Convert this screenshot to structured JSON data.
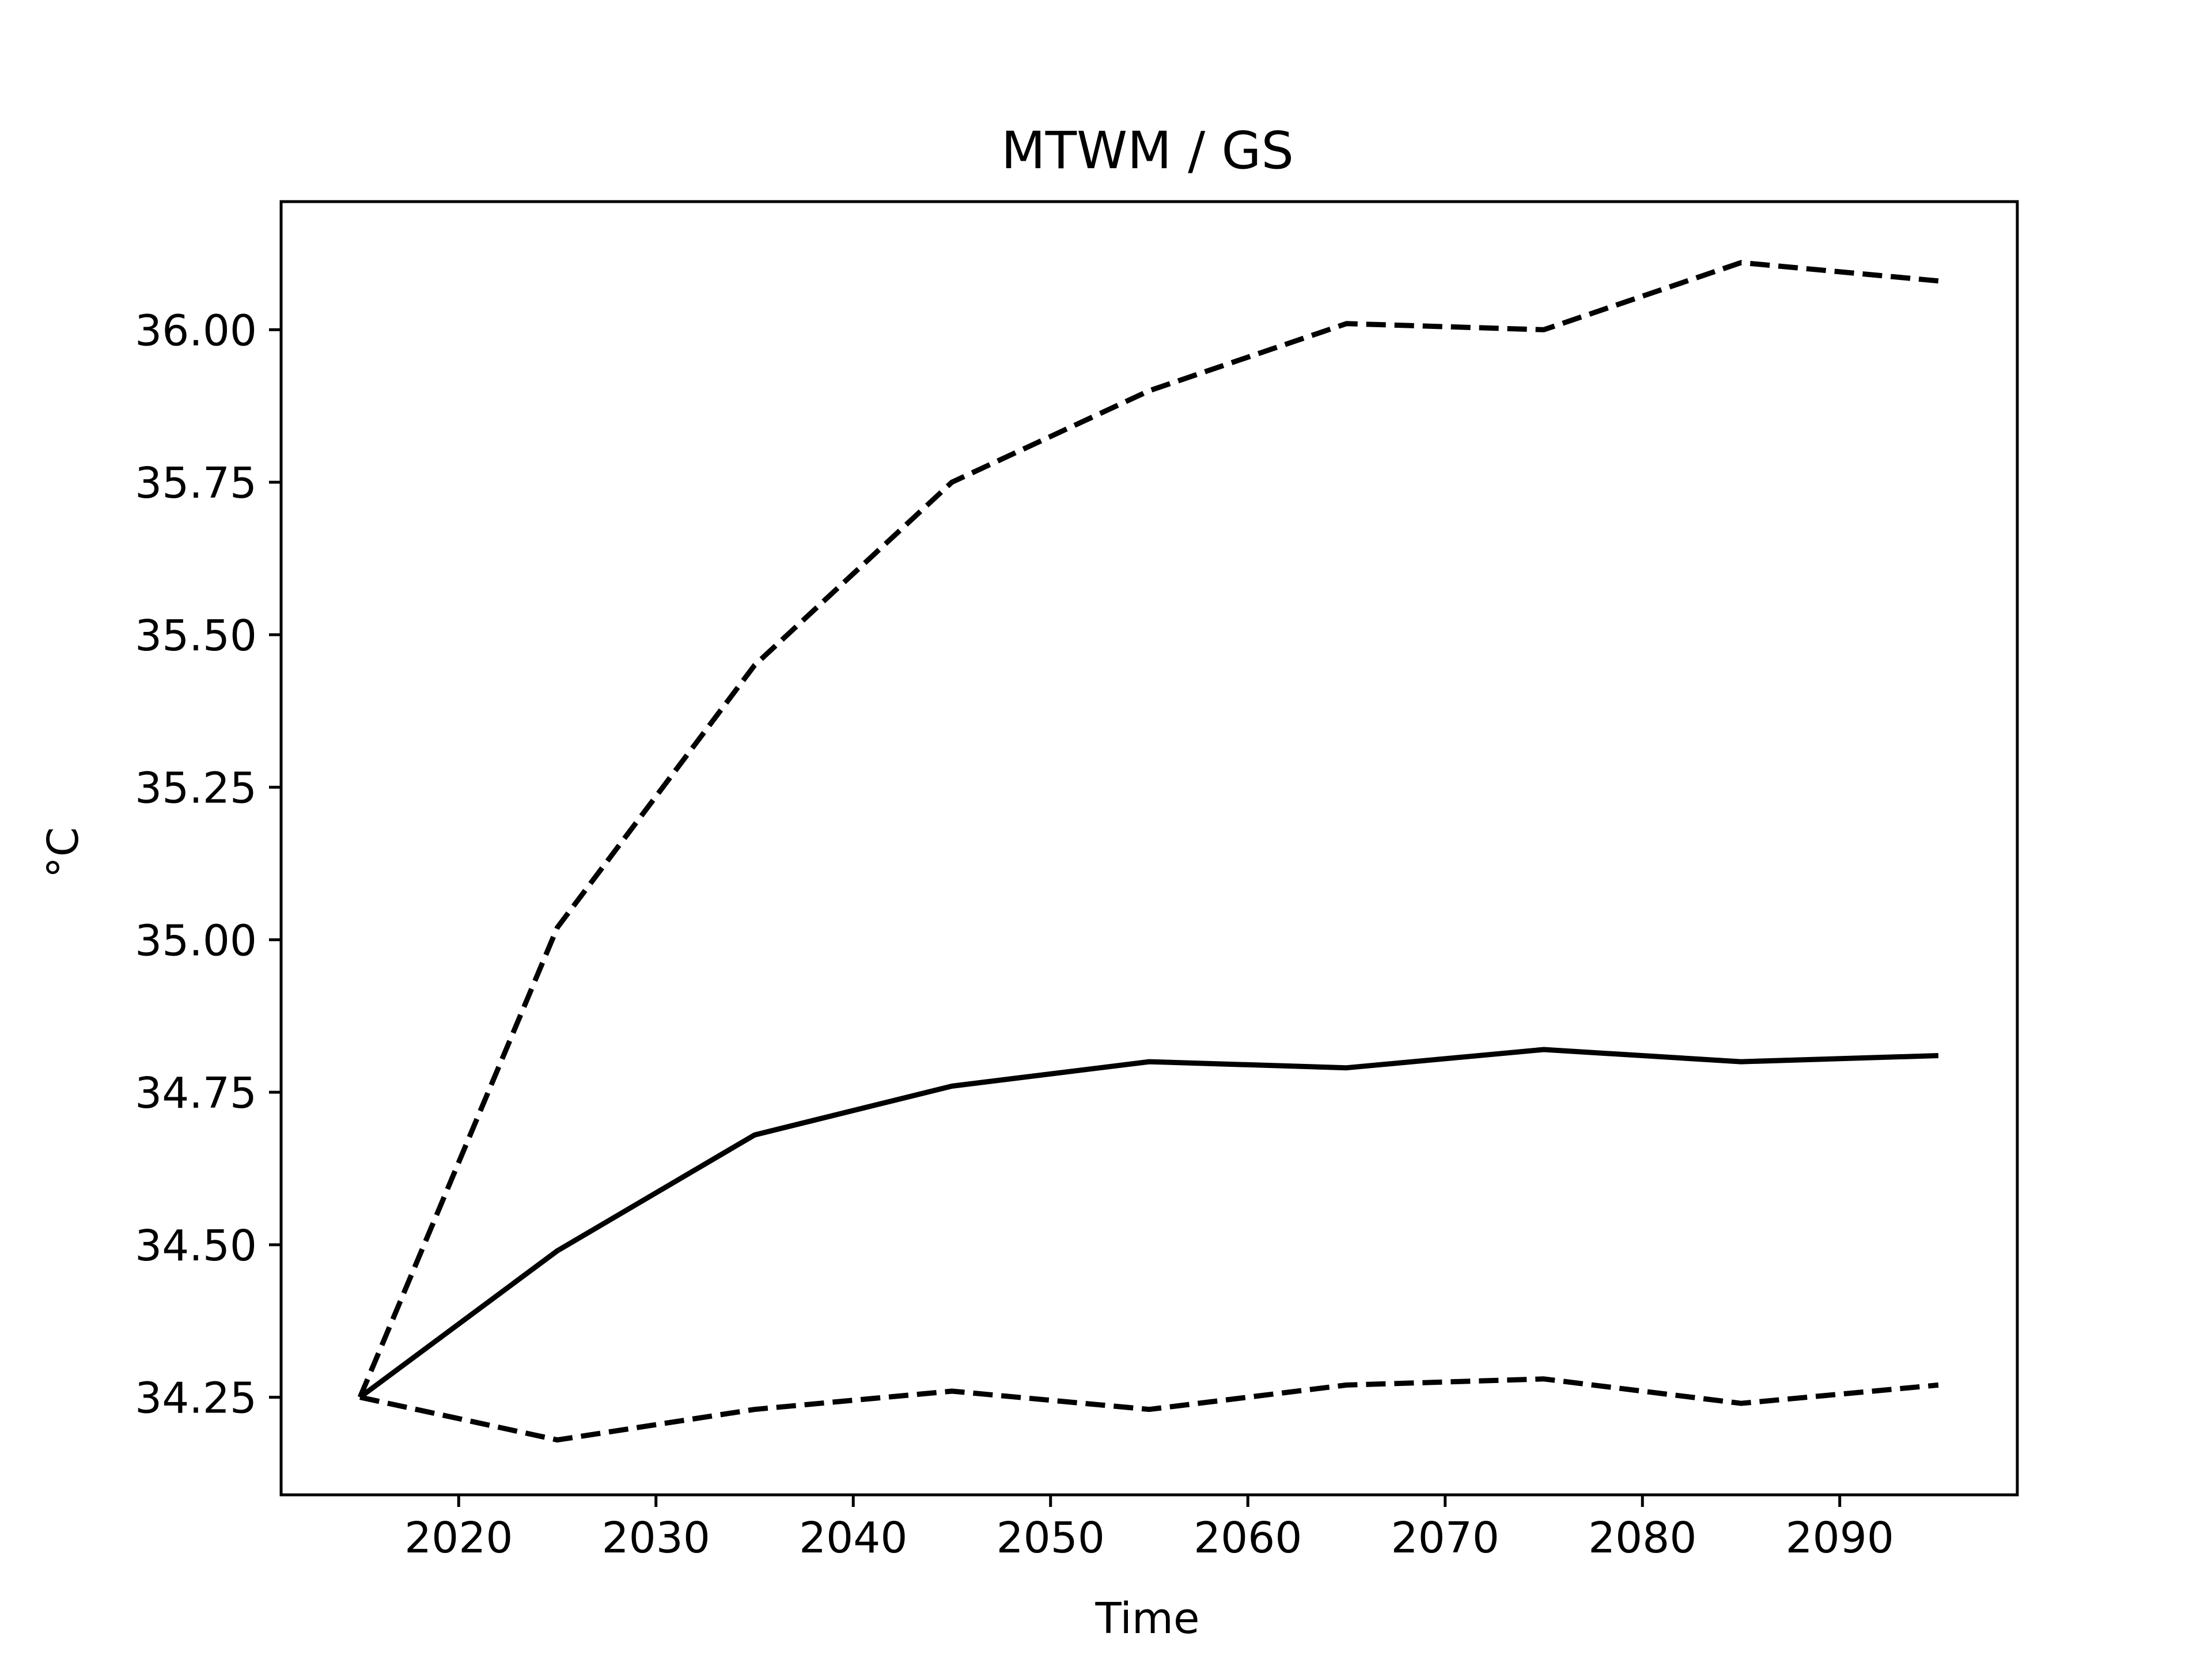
{
  "chart_data": {
    "type": "line",
    "title": "MTWM / GS",
    "xlabel": "Time",
    "ylabel": "°C",
    "xlim": [
      2011,
      2099
    ],
    "ylim": [
      34.09,
      36.21
    ],
    "xticks": [
      2020,
      2030,
      2040,
      2050,
      2060,
      2070,
      2080,
      2090
    ],
    "yticks": [
      34.25,
      34.5,
      34.75,
      35.0,
      35.25,
      35.5,
      35.75,
      36.0
    ],
    "ytick_labels": [
      "34.25",
      "34.50",
      "34.75",
      "35.00",
      "35.25",
      "35.50",
      "35.75",
      "36.00"
    ],
    "grid": false,
    "legend": null,
    "x": [
      2015,
      2025,
      2035,
      2045,
      2055,
      2065,
      2075,
      2085,
      2095
    ],
    "series": [
      {
        "style": "solid",
        "color": "#000000",
        "values": [
          34.25,
          34.49,
          34.68,
          34.76,
          34.8,
          34.79,
          34.82,
          34.8,
          34.81
        ]
      },
      {
        "style": "dashed",
        "color": "#000000",
        "values": [
          34.25,
          35.02,
          35.45,
          35.75,
          35.9,
          36.01,
          36.0,
          36.11,
          36.08
        ]
      },
      {
        "style": "dashed",
        "color": "#000000",
        "values": [
          34.25,
          34.18,
          34.23,
          34.26,
          34.23,
          34.27,
          34.28,
          34.24,
          34.27
        ]
      }
    ]
  }
}
